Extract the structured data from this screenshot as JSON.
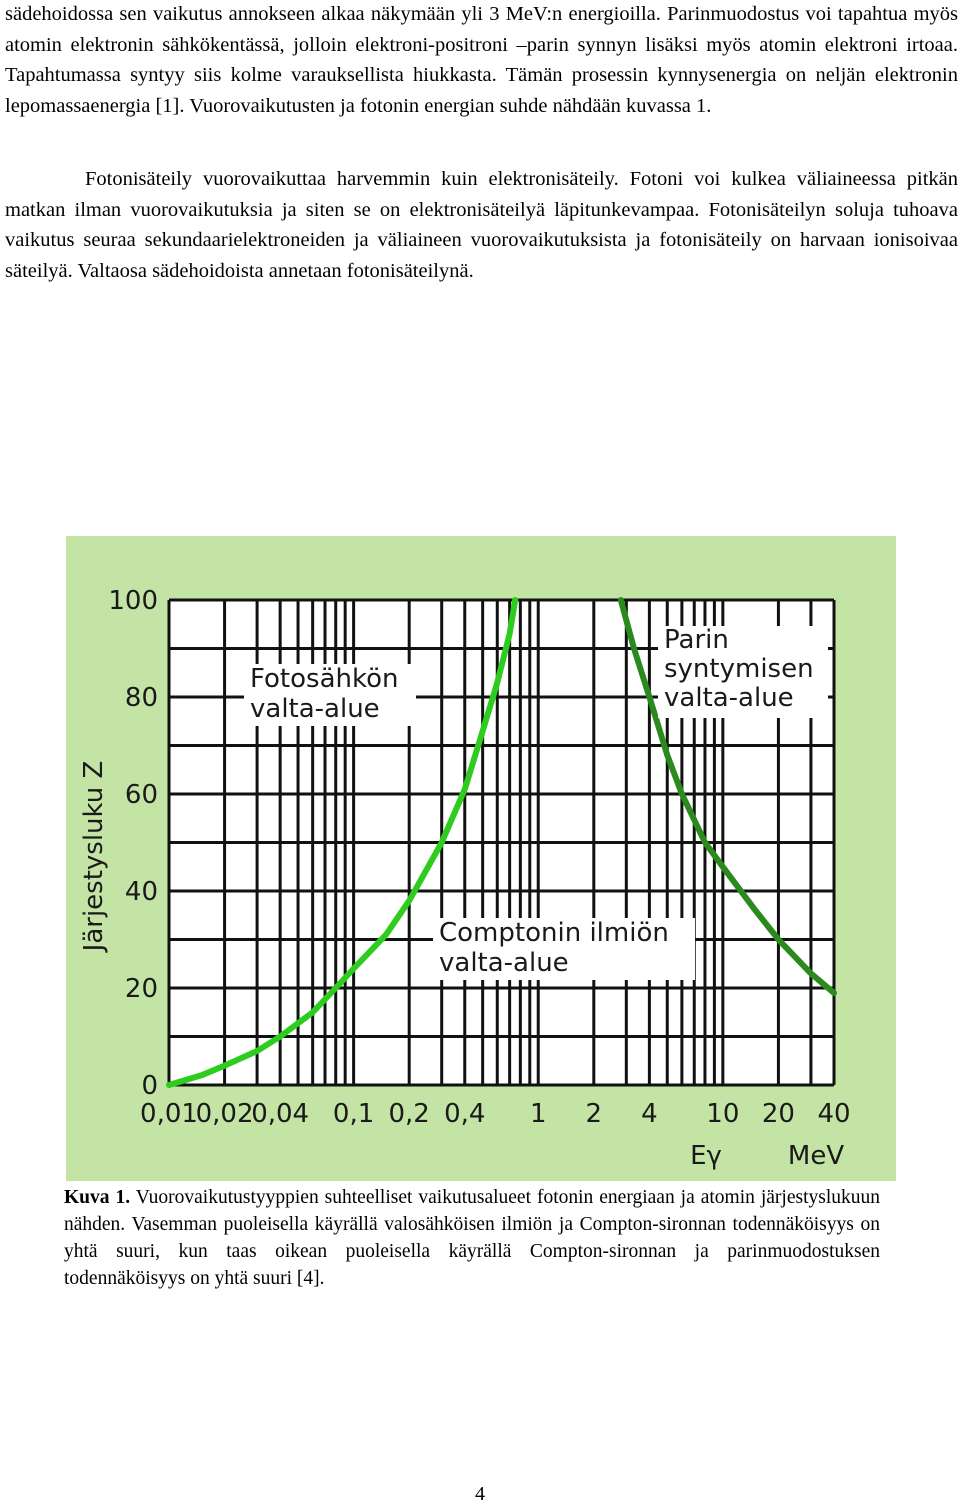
{
  "body": {
    "paragraph_1": "sädehoidossa sen vaikutus annokseen alkaa näkymään yli 3 MeV:n energioilla. Parinmuodostus voi tapahtua myös atomin elektronin sähkökentässä, jolloin elektroni-positroni –parin synnyn lisäksi myös atomin elektroni irtoaa. Tapahtumassa syntyy siis kolme varauksellista hiukkasta. Tämän prosessin kynnysenergia on neljän elektronin lepomassaenergia [1]. Vuorovaikutusten ja fotonin energian suhde nähdään kuvassa 1.",
    "paragraph_2": "Fotonisäteily vuorovaikuttaa harvemmin kuin elektronisäteily. Fotoni voi kulkea väliaineessa pitkän matkan ilman vuorovaikutuksia ja siten se on elektronisäteilyä läpitunkevampaa. Fotonisäteilyn soluja tuhoava vaikutus seuraa sekundaarielektroneiden ja väliaineen vuorovaikutuksista ja fotonisäteily on harvaan ionisoivaa säteilyä. Valtaosa sädehoidoista annetaan fotonisäteilynä."
  },
  "chart_data": {
    "type": "line",
    "ylabel": "Järjestysluku Z",
    "xlabel": "Eγ",
    "x_unit": "MeV",
    "x_scale": "log",
    "xlim": [
      0.01,
      40
    ],
    "ylim": [
      0,
      100
    ],
    "grid": true,
    "x_tick_labels": [
      "0,01",
      "0,02",
      "0,04",
      "0,1",
      "0,2",
      "0,4",
      "1",
      "2",
      "4",
      "10",
      "20",
      "40"
    ],
    "y_tick_labels": [
      "0",
      "20",
      "40",
      "60",
      "80",
      "100"
    ],
    "x_tick_values": [
      0.01,
      0.02,
      0.04,
      0.1,
      0.2,
      0.4,
      1,
      2,
      4,
      10,
      20,
      40
    ],
    "y_tick_values": [
      0,
      20,
      40,
      60,
      80,
      100
    ],
    "series": [
      {
        "x": [
          0.01,
          0.015,
          0.02,
          0.03,
          0.04,
          0.06,
          0.08,
          0.1,
          0.15,
          0.2,
          0.3,
          0.4,
          0.5,
          0.6,
          0.7,
          0.75
        ],
        "y": [
          0,
          2,
          4,
          7,
          10,
          15,
          20,
          24,
          31,
          38,
          50,
          61,
          73,
          83,
          93,
          100
        ],
        "color": "#2ecc1f"
      },
      {
        "x": [
          2.8,
          3.3,
          4,
          5,
          6,
          8,
          10,
          15,
          20,
          30,
          40
        ],
        "y": [
          100,
          90,
          80,
          68,
          60,
          50,
          45,
          36,
          30,
          23,
          19
        ],
        "color": "#2a8a1e"
      }
    ],
    "annotations": [
      {
        "lines": [
          "Fotosähkön",
          "valta-alue"
        ]
      },
      {
        "lines": [
          "Parin",
          "syntymisen",
          "valta-alue"
        ]
      },
      {
        "lines": [
          "Comptonin ilmiön",
          "valta-alue"
        ]
      }
    ]
  },
  "caption": {
    "label": "Kuva 1.",
    "text": " Vuorovaikutustyyppien suhteelliset vaikutusalueet fotonin energiaan ja atomin järjestyslukuun nähden. Vasemman puoleisella käyrällä valosähköisen ilmiön ja Compton-sironnan todennäköisyys on yhtä suuri, kun taas oikean puoleisella käyrällä Compton-sironnan ja parinmuodostuksen todennäköisyys on yhtä suuri [4]."
  },
  "page_number": "4"
}
